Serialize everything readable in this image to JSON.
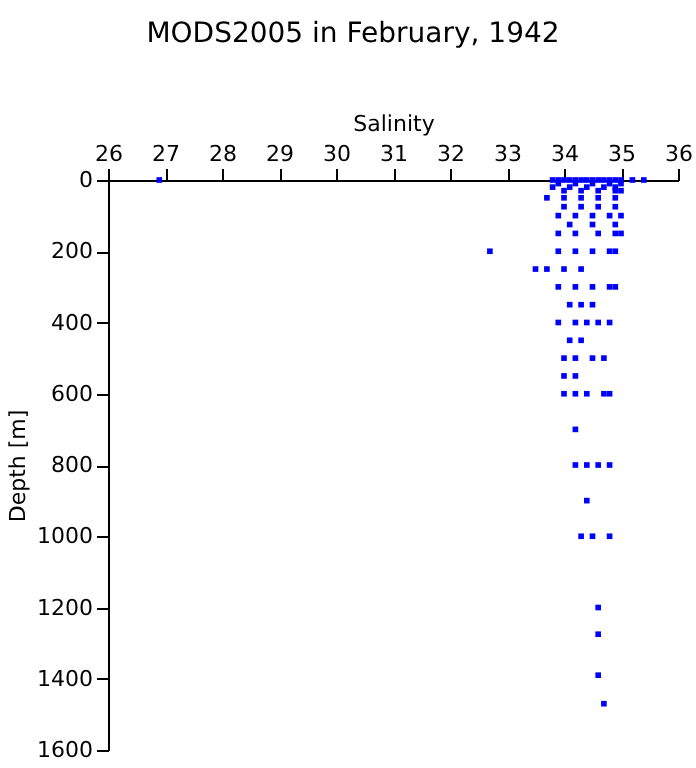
{
  "chart_data": {
    "type": "scatter",
    "title": "MODS2005 in February, 1942",
    "xlabel": "Salinity",
    "ylabel": "Depth [m]",
    "xlim": [
      26,
      36
    ],
    "xticks": [
      26,
      27,
      28,
      29,
      30,
      31,
      32,
      33,
      34,
      35,
      36
    ],
    "ylim": [
      1600,
      0
    ],
    "yticks": [
      0,
      200,
      400,
      600,
      800,
      1000,
      1200,
      1400,
      1600
    ],
    "grid": false,
    "marker": "square",
    "series": [
      {
        "color": "#0000ff",
        "x": [
          26.9,
          33.8,
          33.9,
          34.0,
          34.1,
          34.2,
          34.3,
          34.4,
          34.5,
          34.6,
          34.7,
          34.8,
          34.9,
          35.0,
          35.2,
          35.4,
          33.9,
          34.2,
          34.5,
          34.8,
          35.0,
          33.8,
          34.1,
          34.4,
          34.7,
          34.9,
          34.0,
          34.3,
          34.6,
          34.9,
          35.0,
          33.7,
          34.0,
          34.3,
          34.6,
          34.9,
          34.0,
          34.3,
          34.6,
          34.9,
          33.9,
          34.2,
          34.5,
          34.8,
          35.0,
          34.1,
          34.5,
          34.9,
          33.9,
          34.2,
          34.6,
          34.9,
          35.0,
          32.7,
          33.9,
          34.2,
          34.5,
          34.8,
          34.9,
          33.5,
          33.7,
          34.0,
          34.3,
          33.9,
          34.2,
          34.5,
          34.8,
          34.9,
          34.1,
          34.3,
          34.5,
          33.9,
          34.2,
          34.4,
          34.6,
          34.8,
          34.1,
          34.3,
          34.0,
          34.2,
          34.5,
          34.7,
          34.0,
          34.2,
          34.0,
          34.2,
          34.4,
          34.7,
          34.8,
          34.2,
          34.2,
          34.4,
          34.6,
          34.8,
          34.4,
          34.3,
          34.5,
          34.8,
          34.6,
          34.6,
          34.6,
          34.7
        ],
        "values": [
          0,
          0,
          0,
          0,
          0,
          0,
          0,
          0,
          0,
          0,
          0,
          0,
          0,
          0,
          0,
          0,
          10,
          10,
          10,
          10,
          10,
          20,
          20,
          20,
          20,
          20,
          30,
          30,
          30,
          30,
          30,
          50,
          50,
          50,
          50,
          50,
          75,
          75,
          75,
          75,
          100,
          100,
          100,
          100,
          100,
          125,
          125,
          125,
          150,
          150,
          150,
          150,
          150,
          200,
          200,
          200,
          200,
          200,
          200,
          250,
          250,
          250,
          250,
          300,
          300,
          300,
          300,
          300,
          350,
          350,
          350,
          400,
          400,
          400,
          400,
          400,
          450,
          450,
          500,
          500,
          500,
          500,
          550,
          550,
          600,
          600,
          600,
          600,
          600,
          700,
          800,
          800,
          800,
          800,
          900,
          1000,
          1000,
          1000,
          1200,
          1275,
          1390,
          1470
        ]
      }
    ]
  }
}
